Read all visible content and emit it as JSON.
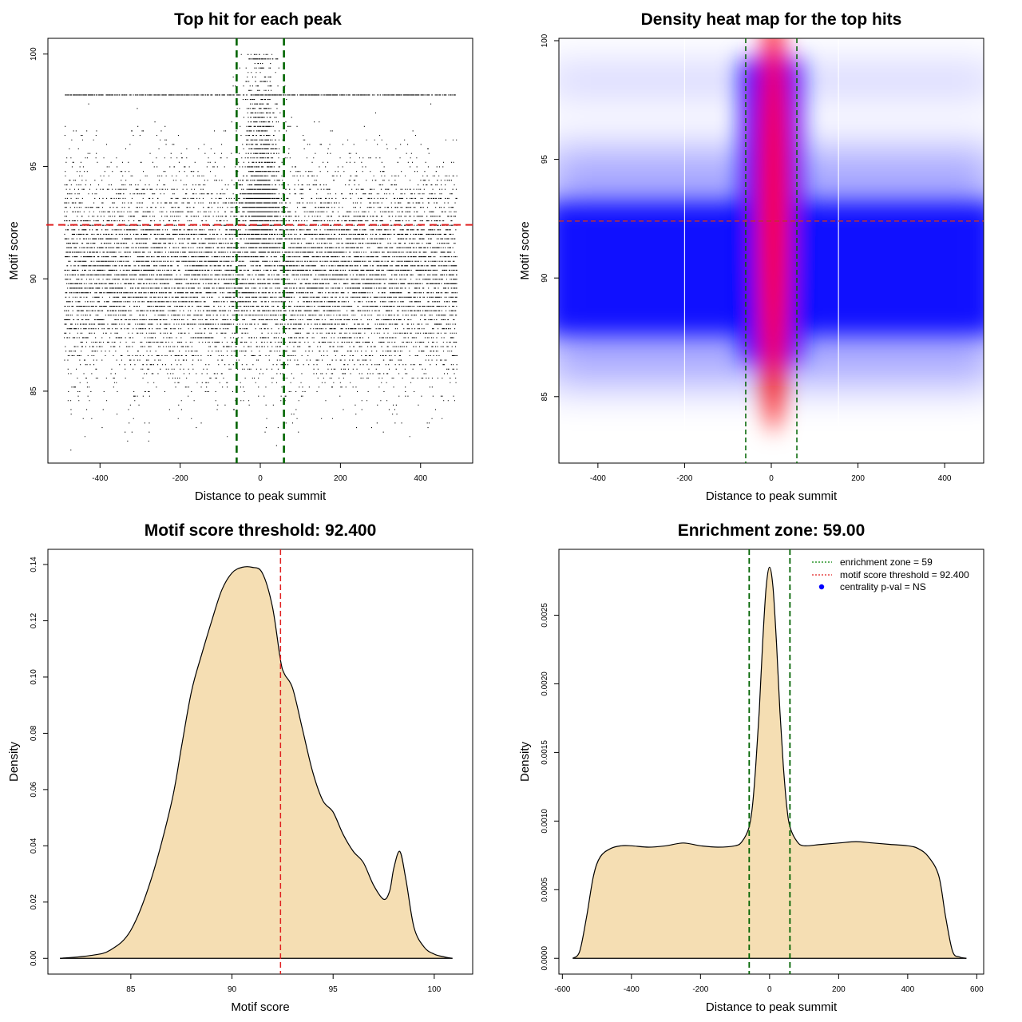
{
  "chart_data": [
    {
      "id": "scatter",
      "type": "scatter",
      "title": "Top hit for each peak",
      "xlabel": "Distance to peak summit",
      "ylabel": "Motif score",
      "xlim": [
        -530,
        530
      ],
      "ylim": [
        81.8,
        100.7
      ],
      "xticks": [
        -400,
        -200,
        0,
        200,
        400
      ],
      "yticks": [
        85,
        90,
        95,
        100
      ],
      "x_range": [
        -490,
        490
      ],
      "hline": 92.4,
      "vlines": [
        -59,
        59
      ],
      "hline_color": "#e02020",
      "vline_color": "#006400"
    },
    {
      "id": "heatmap",
      "type": "heatmap",
      "title": "Density heat map for the top hits",
      "xlabel": "Distance to peak summit",
      "ylabel": "Motif score",
      "xlim": [
        -490,
        490
      ],
      "ylim": [
        82.2,
        100.1
      ],
      "xticks": [
        -400,
        -200,
        0,
        200,
        400
      ],
      "yticks": [
        85,
        90,
        95,
        100
      ],
      "hline": 92.4,
      "vlines": [
        -59,
        59
      ],
      "colors": [
        "#ffffff",
        "#0000ff",
        "#ff0000"
      ],
      "hline_color": "#c03030",
      "vline_color": "#006400"
    },
    {
      "id": "score-density",
      "type": "area",
      "title": "Motif score threshold: 92.400",
      "xlabel": "Motif score",
      "ylabel": "Density",
      "xlim": [
        80.9,
        101.9
      ],
      "ylim": [
        -0.0056,
        0.1454
      ],
      "xticks": [
        85,
        90,
        95,
        100
      ],
      "yticks": [
        0.0,
        0.02,
        0.04,
        0.06,
        0.08,
        0.1,
        0.12,
        0.14
      ],
      "ytick_labels": [
        "0.00",
        "0.02",
        "0.04",
        "0.06",
        "0.08",
        "0.10",
        "0.12",
        "0.14"
      ],
      "x": [
        81.5,
        83,
        84,
        85,
        86,
        87,
        87.5,
        88,
        88.5,
        89,
        89.5,
        90,
        90.5,
        91,
        91.5,
        92,
        92.4,
        92.6,
        93,
        93.5,
        94,
        94.5,
        95,
        95.5,
        96,
        96.5,
        97,
        97.5,
        97.8,
        98,
        98.3,
        98.6,
        99,
        99.5,
        100,
        100.5,
        100.9
      ],
      "y": [
        0.0,
        0.001,
        0.003,
        0.01,
        0.028,
        0.055,
        0.075,
        0.095,
        0.108,
        0.12,
        0.131,
        0.137,
        0.139,
        0.139,
        0.137,
        0.125,
        0.106,
        0.101,
        0.096,
        0.081,
        0.066,
        0.056,
        0.052,
        0.044,
        0.038,
        0.034,
        0.026,
        0.021,
        0.024,
        0.032,
        0.038,
        0.028,
        0.011,
        0.004,
        0.0015,
        0.0005,
        0.0
      ],
      "fill": "#f5deb3",
      "vline": 92.4,
      "vline_color": "#e02020"
    },
    {
      "id": "distance-density",
      "type": "area",
      "title": "Enrichment zone: 59.00",
      "xlabel": "Distance to peak summit",
      "ylabel": "Density",
      "xlim": [
        -610,
        620
      ],
      "ylim": [
        -0.000115,
        0.00298
      ],
      "xticks": [
        -600,
        -400,
        -200,
        0,
        200,
        400,
        600
      ],
      "yticks": [
        0.0,
        0.0005,
        0.001,
        0.0015,
        0.002,
        0.0025
      ],
      "ytick_labels": [
        "0.0000",
        "0.0005",
        "0.0010",
        "0.0015",
        "0.0020",
        "0.0025"
      ],
      "x": [
        -570,
        -550,
        -530,
        -510,
        -490,
        -460,
        -430,
        -400,
        -350,
        -300,
        -250,
        -200,
        -150,
        -100,
        -80,
        -60,
        -50,
        -40,
        -30,
        -20,
        -10,
        0,
        10,
        20,
        30,
        40,
        50,
        60,
        80,
        100,
        150,
        200,
        250,
        300,
        350,
        400,
        430,
        460,
        490,
        510,
        530,
        550,
        570
      ],
      "y": [
        0.0,
        5e-05,
        0.0003,
        0.0006,
        0.00074,
        0.0008,
        0.00082,
        0.00082,
        0.00081,
        0.00082,
        0.00084,
        0.00082,
        0.00081,
        0.00082,
        0.00085,
        0.00095,
        0.0011,
        0.0014,
        0.0018,
        0.0023,
        0.0027,
        0.00285,
        0.0027,
        0.0023,
        0.0018,
        0.0014,
        0.0011,
        0.00095,
        0.00085,
        0.00082,
        0.00083,
        0.00084,
        0.00085,
        0.00084,
        0.00083,
        0.00082,
        0.0008,
        0.00074,
        0.0006,
        0.0003,
        5e-05,
        1e-05,
        0.0
      ],
      "fill": "#f5deb3",
      "vlines": [
        -59,
        59
      ],
      "vline_color": "#006400",
      "legend": {
        "position": "top-right",
        "entries": [
          {
            "label": "enrichment zone = 59",
            "color": "#008000",
            "style": "dotted-line"
          },
          {
            "label": "motif score threshold = 92.400",
            "color": "#e02020",
            "style": "dotted-line"
          },
          {
            "label": "centrality p-val = NS",
            "color": "#0000ff",
            "style": "dot"
          }
        ]
      }
    }
  ]
}
